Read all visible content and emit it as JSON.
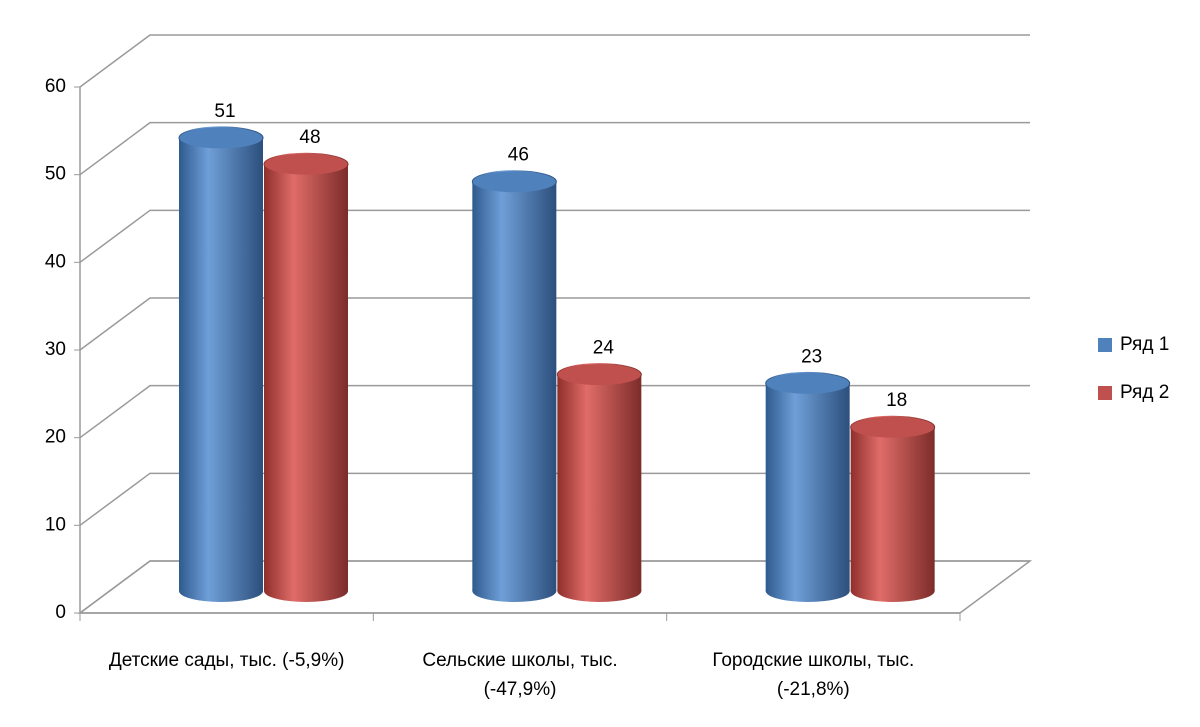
{
  "chart_data": {
    "type": "bar3d",
    "categories": [
      "Детские сады, тыс. (-5,9%)",
      "Сельские школы, тыс. (-47,9%)",
      "Городские школы, тыс. (-21,8%)"
    ],
    "series": [
      {
        "name": "Ряд 1",
        "color": "#4f81bd",
        "values": [
          51,
          46,
          23
        ]
      },
      {
        "name": "Ряд 2",
        "color": "#c0504d",
        "values": [
          48,
          24,
          18
        ]
      }
    ],
    "ylim": [
      0,
      60
    ],
    "yticks": [
      0,
      10,
      20,
      30,
      40,
      50,
      60
    ],
    "grid": true,
    "legend": "right"
  }
}
